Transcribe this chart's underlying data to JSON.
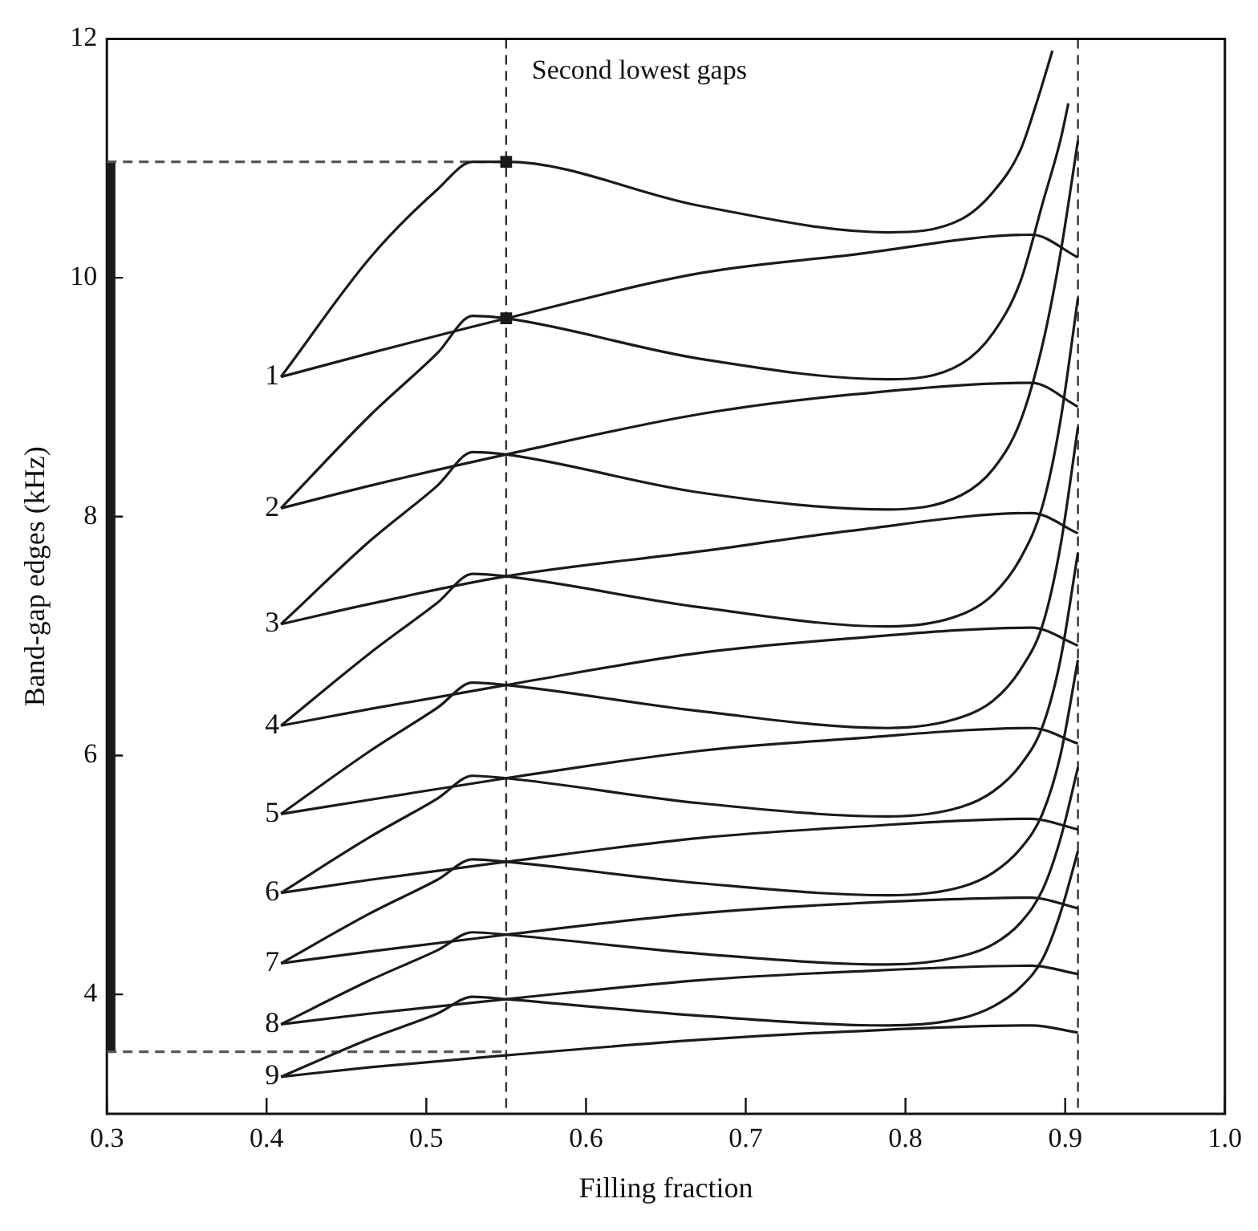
{
  "chart_data": {
    "type": "line",
    "xlabel": "Filling fraction",
    "ylabel": "Band-gap edges (kHz)",
    "xlim": [
      0.3,
      1.0
    ],
    "ylim": [
      3,
      12
    ],
    "xticks": [
      0.3,
      0.4,
      0.5,
      0.6,
      0.7,
      0.8,
      0.9,
      {
        "value": 1,
        "label": "1.0"
      }
    ],
    "yticks": [
      4,
      6,
      8,
      10,
      12
    ],
    "marker": "none",
    "line_style": "solid",
    "series": [
      {
        "name": "1",
        "color": "#1a1a1a",
        "x": [
          0.409,
          0.465,
          0.507,
          0.529,
          0.55,
          0.672,
          0.789,
          0.835,
          0.855,
          0.872,
          0.882,
          0.892
        ],
        "values": [
          9.17,
          10.17,
          10.74,
          10.97,
          10.97,
          10.6,
          10.38,
          10.49,
          10.72,
          11.07,
          11.46,
          11.9
        ]
      },
      {
        "color": "#1a1a1a",
        "x": [
          0.409,
          0.465,
          0.55,
          0.672,
          0.765,
          0.879,
          0.908
        ],
        "values": [
          9.17,
          9.37,
          9.66,
          10.04,
          10.19,
          10.36,
          10.17
        ]
      },
      {
        "name": "2",
        "color": "#1a1a1a",
        "x": [
          0.409,
          0.465,
          0.507,
          0.529,
          0.55,
          0.672,
          0.789,
          0.835,
          0.855,
          0.872,
          0.886,
          0.897,
          0.902
        ],
        "values": [
          8.07,
          8.85,
          9.37,
          9.68,
          9.66,
          9.32,
          9.15,
          9.28,
          9.54,
          9.97,
          10.63,
          11.15,
          11.46
        ]
      },
      {
        "color": "#1a1a1a",
        "x": [
          0.409,
          0.465,
          0.55,
          0.672,
          0.765,
          0.879,
          0.908
        ],
        "values": [
          8.07,
          8.26,
          8.52,
          8.86,
          9.02,
          9.12,
          8.92
        ]
      },
      {
        "color": "#1a1a1a",
        "x": [
          0.409,
          0.465,
          0.507,
          0.529,
          0.55,
          0.672,
          0.789,
          0.835,
          0.855,
          0.872,
          0.886,
          0.897,
          0.908
        ],
        "name": "3",
        "values": [
          7.1,
          7.8,
          8.26,
          8.54,
          8.52,
          8.2,
          8.06,
          8.18,
          8.4,
          8.8,
          9.45,
          10.2,
          11.15
        ]
      },
      {
        "color": "#1a1a1a",
        "x": [
          0.409,
          0.465,
          0.55,
          0.672,
          0.765,
          0.879,
          0.908
        ],
        "values": [
          7.1,
          7.27,
          7.5,
          7.71,
          7.88,
          8.03,
          7.86
        ]
      },
      {
        "color": "#1a1a1a",
        "x": [
          0.409,
          0.465,
          0.507,
          0.529,
          0.55,
          0.672,
          0.789,
          0.835,
          0.855,
          0.872,
          0.886,
          0.897,
          0.908
        ],
        "name": "4",
        "values": [
          6.25,
          6.86,
          7.28,
          7.52,
          7.5,
          7.24,
          7.08,
          7.18,
          7.35,
          7.65,
          8.1,
          8.8,
          9.83
        ]
      },
      {
        "color": "#1a1a1a",
        "x": [
          0.409,
          0.465,
          0.55,
          0.672,
          0.765,
          0.879,
          0.908
        ],
        "values": [
          6.25,
          6.39,
          6.59,
          6.86,
          6.98,
          7.07,
          6.92
        ]
      },
      {
        "color": "#1a1a1a",
        "x": [
          0.409,
          0.465,
          0.507,
          0.529,
          0.55,
          0.672,
          0.789,
          0.835,
          0.855,
          0.872,
          0.886,
          0.897,
          0.908
        ],
        "name": "5",
        "values": [
          5.51,
          6.04,
          6.4,
          6.61,
          6.59,
          6.37,
          6.23,
          6.32,
          6.46,
          6.72,
          7.1,
          7.75,
          8.75
        ]
      },
      {
        "color": "#1a1a1a",
        "x": [
          0.409,
          0.465,
          0.55,
          0.672,
          0.765,
          0.879,
          0.908
        ],
        "values": [
          5.51,
          5.63,
          5.81,
          6.04,
          6.14,
          6.23,
          6.1
        ]
      },
      {
        "color": "#1a1a1a",
        "x": [
          0.409,
          0.465,
          0.507,
          0.529,
          0.55,
          0.672,
          0.789,
          0.835,
          0.855,
          0.872,
          0.886,
          0.897,
          0.908
        ],
        "name": "6",
        "values": [
          4.85,
          5.32,
          5.64,
          5.83,
          5.81,
          5.6,
          5.49,
          5.57,
          5.7,
          5.92,
          6.25,
          6.8,
          7.7
        ]
      },
      {
        "color": "#1a1a1a",
        "x": [
          0.409,
          0.465,
          0.55,
          0.672,
          0.765,
          0.879,
          0.908
        ],
        "values": [
          4.85,
          4.96,
          5.11,
          5.31,
          5.4,
          5.47,
          5.38
        ]
      },
      {
        "color": "#1a1a1a",
        "x": [
          0.409,
          0.465,
          0.507,
          0.529,
          0.55,
          0.672,
          0.789,
          0.835,
          0.855,
          0.872,
          0.886,
          0.897,
          0.908
        ],
        "name": "7",
        "values": [
          4.26,
          4.68,
          4.96,
          5.13,
          5.11,
          4.93,
          4.83,
          4.9,
          5.02,
          5.22,
          5.52,
          6.0,
          6.8
        ]
      },
      {
        "color": "#1a1a1a",
        "x": [
          0.409,
          0.465,
          0.55,
          0.672,
          0.765,
          0.879,
          0.908
        ],
        "values": [
          4.26,
          4.36,
          4.5,
          4.68,
          4.76,
          4.81,
          4.72
        ]
      },
      {
        "color": "#1a1a1a",
        "x": [
          0.409,
          0.465,
          0.507,
          0.529,
          0.55,
          0.672,
          0.789,
          0.835,
          0.855,
          0.872,
          0.886,
          0.897,
          0.908
        ],
        "name": "8",
        "values": [
          3.75,
          4.12,
          4.37,
          4.52,
          4.5,
          4.34,
          4.25,
          4.32,
          4.42,
          4.6,
          4.88,
          5.3,
          5.9
        ]
      },
      {
        "color": "#1a1a1a",
        "x": [
          0.409,
          0.465,
          0.55,
          0.672,
          0.765,
          0.879,
          0.908
        ],
        "values": [
          3.75,
          3.84,
          3.96,
          4.12,
          4.19,
          4.24,
          4.17
        ]
      },
      {
        "color": "#1a1a1a",
        "x": [
          0.409,
          0.465,
          0.507,
          0.529,
          0.55,
          0.672,
          0.789,
          0.835,
          0.855,
          0.872,
          0.886,
          0.897,
          0.908
        ],
        "name": "9",
        "values": [
          3.31,
          3.63,
          3.84,
          3.98,
          3.96,
          3.82,
          3.74,
          3.8,
          3.9,
          4.06,
          4.3,
          4.68,
          5.2
        ]
      },
      {
        "color": "#1a1a1a",
        "x": [
          0.409,
          0.465,
          0.55,
          0.672,
          0.765,
          0.879,
          0.908
        ],
        "values": [
          3.31,
          3.39,
          3.49,
          3.62,
          3.69,
          3.74,
          3.68
        ]
      },
      {
        "color": "#555555",
        "x": [
          0.3,
          0.55
        ],
        "values": [
          10.97,
          10.97
        ],
        "line_style": "dashed"
      },
      {
        "color": "#555555",
        "x": [
          0.3,
          0.55
        ],
        "values": [
          3.52,
          3.52
        ],
        "line_style": "dashed"
      },
      {
        "type": "scatter",
        "marker": "square",
        "color": "#1a1a1a",
        "x": [
          0.55,
          0.55
        ],
        "values": [
          10.97,
          9.66
        ]
      },
      {
        "type": "bar",
        "color": "#1a1a1a",
        "x": [
          0.3
        ],
        "base": [
          3.52
        ],
        "values": [
          7.45
        ]
      }
    ],
    "ref_lines": [
      {
        "axis": "x",
        "value": 0.55,
        "color": "#333333",
        "line_style": "dashed"
      },
      {
        "axis": "x",
        "value": 0.908,
        "color": "#333333",
        "line_style": "dashed"
      }
    ],
    "annotations": [
      "Second lowest gaps"
    ]
  }
}
